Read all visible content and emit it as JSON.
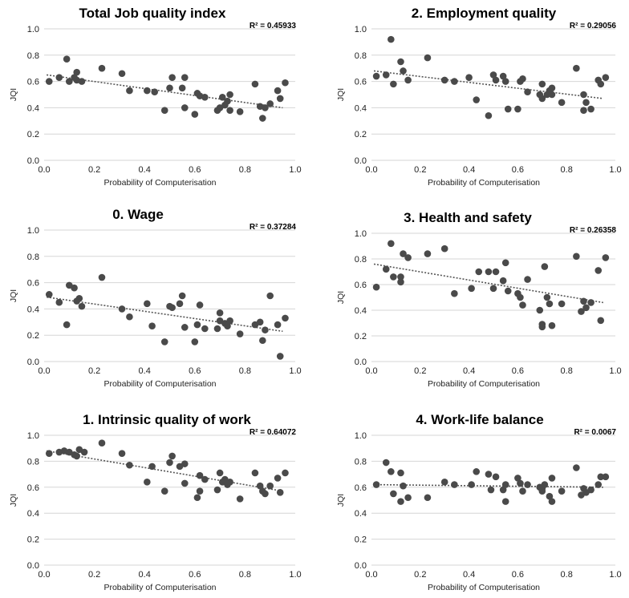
{
  "chart_data": [
    {
      "type": "scatter",
      "title": "Total Job quality index",
      "r2_label": "R² = 0.45933",
      "xlabel": "Probability of Computerisation",
      "ylabel": "JQI",
      "xlim": [
        0,
        1
      ],
      "ylim": [
        0,
        1
      ],
      "xticks": [
        "0.0",
        "0.2",
        "0.4",
        "0.6",
        "0.8",
        "1.0"
      ],
      "yticks": [
        "0.0",
        "0.2",
        "0.4",
        "0.6",
        "0.8",
        "1.0"
      ],
      "grid": true,
      "trendline": {
        "style": "dotted",
        "from": [
          0.01,
          0.65
        ],
        "to": [
          0.95,
          0.4
        ]
      },
      "points": [
        [
          0.02,
          0.6
        ],
        [
          0.06,
          0.63
        ],
        [
          0.09,
          0.77
        ],
        [
          0.1,
          0.6
        ],
        [
          0.12,
          0.63
        ],
        [
          0.13,
          0.61
        ],
        [
          0.13,
          0.67
        ],
        [
          0.15,
          0.6
        ],
        [
          0.23,
          0.7
        ],
        [
          0.31,
          0.66
        ],
        [
          0.34,
          0.53
        ],
        [
          0.41,
          0.53
        ],
        [
          0.44,
          0.52
        ],
        [
          0.48,
          0.38
        ],
        [
          0.5,
          0.55
        ],
        [
          0.51,
          0.63
        ],
        [
          0.55,
          0.55
        ],
        [
          0.56,
          0.63
        ],
        [
          0.56,
          0.4
        ],
        [
          0.6,
          0.35
        ],
        [
          0.61,
          0.51
        ],
        [
          0.62,
          0.49
        ],
        [
          0.64,
          0.48
        ],
        [
          0.69,
          0.38
        ],
        [
          0.7,
          0.4
        ],
        [
          0.71,
          0.48
        ],
        [
          0.72,
          0.42
        ],
        [
          0.73,
          0.45
        ],
        [
          0.74,
          0.5
        ],
        [
          0.74,
          0.38
        ],
        [
          0.78,
          0.37
        ],
        [
          0.84,
          0.58
        ],
        [
          0.86,
          0.41
        ],
        [
          0.87,
          0.32
        ],
        [
          0.88,
          0.4
        ],
        [
          0.9,
          0.43
        ],
        [
          0.93,
          0.53
        ],
        [
          0.94,
          0.47
        ],
        [
          0.96,
          0.59
        ]
      ]
    },
    {
      "type": "scatter",
      "title": "2. Employment quality",
      "r2_label": "R² = 0.29056",
      "xlabel": "Probability of Computerisation",
      "ylabel": "JQI",
      "xlim": [
        0,
        1
      ],
      "ylim": [
        0,
        1
      ],
      "xticks": [
        "0.0",
        "0.2",
        "0.4",
        "0.6",
        "0.8",
        "1.0"
      ],
      "yticks": [
        "0.0",
        "0.2",
        "0.4",
        "0.6",
        "0.8",
        "1.0"
      ],
      "grid": true,
      "trendline": {
        "style": "dotted",
        "from": [
          0.01,
          0.68
        ],
        "to": [
          0.95,
          0.47
        ]
      },
      "points": [
        [
          0.02,
          0.64
        ],
        [
          0.06,
          0.65
        ],
        [
          0.08,
          0.92
        ],
        [
          0.09,
          0.58
        ],
        [
          0.12,
          0.75
        ],
        [
          0.13,
          0.68
        ],
        [
          0.15,
          0.61
        ],
        [
          0.23,
          0.78
        ],
        [
          0.3,
          0.61
        ],
        [
          0.34,
          0.6
        ],
        [
          0.4,
          0.63
        ],
        [
          0.43,
          0.46
        ],
        [
          0.48,
          0.34
        ],
        [
          0.5,
          0.65
        ],
        [
          0.51,
          0.61
        ],
        [
          0.54,
          0.64
        ],
        [
          0.55,
          0.6
        ],
        [
          0.56,
          0.39
        ],
        [
          0.6,
          0.39
        ],
        [
          0.61,
          0.6
        ],
        [
          0.62,
          0.62
        ],
        [
          0.64,
          0.52
        ],
        [
          0.69,
          0.5
        ],
        [
          0.7,
          0.47
        ],
        [
          0.7,
          0.58
        ],
        [
          0.72,
          0.5
        ],
        [
          0.73,
          0.53
        ],
        [
          0.74,
          0.55
        ],
        [
          0.74,
          0.5
        ],
        [
          0.78,
          0.44
        ],
        [
          0.84,
          0.7
        ],
        [
          0.87,
          0.38
        ],
        [
          0.87,
          0.5
        ],
        [
          0.88,
          0.44
        ],
        [
          0.9,
          0.39
        ],
        [
          0.93,
          0.61
        ],
        [
          0.94,
          0.58
        ],
        [
          0.96,
          0.63
        ]
      ]
    },
    {
      "type": "scatter",
      "title": "0. Wage",
      "r2_label": "R² = 0.37284",
      "xlabel": "Probability of Computerisation",
      "ylabel": "JQI",
      "xlim": [
        0,
        1
      ],
      "ylim": [
        0,
        1
      ],
      "xticks": [
        "0.0",
        "0.2",
        "0.4",
        "0.6",
        "0.8",
        "1.0"
      ],
      "yticks": [
        "0.0",
        "0.2",
        "0.4",
        "0.6",
        "0.8",
        "1.0"
      ],
      "grid": true,
      "trendline": {
        "style": "dotted",
        "from": [
          0.01,
          0.49
        ],
        "to": [
          0.95,
          0.23
        ]
      },
      "points": [
        [
          0.02,
          0.51
        ],
        [
          0.06,
          0.45
        ],
        [
          0.09,
          0.28
        ],
        [
          0.1,
          0.58
        ],
        [
          0.12,
          0.56
        ],
        [
          0.13,
          0.46
        ],
        [
          0.14,
          0.48
        ],
        [
          0.15,
          0.42
        ],
        [
          0.23,
          0.64
        ],
        [
          0.31,
          0.4
        ],
        [
          0.34,
          0.34
        ],
        [
          0.41,
          0.44
        ],
        [
          0.43,
          0.27
        ],
        [
          0.48,
          0.15
        ],
        [
          0.5,
          0.42
        ],
        [
          0.51,
          0.41
        ],
        [
          0.54,
          0.44
        ],
        [
          0.55,
          0.5
        ],
        [
          0.56,
          0.26
        ],
        [
          0.6,
          0.15
        ],
        [
          0.61,
          0.28
        ],
        [
          0.62,
          0.43
        ],
        [
          0.64,
          0.25
        ],
        [
          0.69,
          0.25
        ],
        [
          0.7,
          0.31
        ],
        [
          0.7,
          0.37
        ],
        [
          0.72,
          0.29
        ],
        [
          0.73,
          0.27
        ],
        [
          0.74,
          0.31
        ],
        [
          0.78,
          0.21
        ],
        [
          0.84,
          0.28
        ],
        [
          0.86,
          0.3
        ],
        [
          0.87,
          0.16
        ],
        [
          0.88,
          0.24
        ],
        [
          0.9,
          0.5
        ],
        [
          0.93,
          0.28
        ],
        [
          0.94,
          0.04
        ],
        [
          0.96,
          0.33
        ]
      ]
    },
    {
      "type": "scatter",
      "title": "3. Health and safety",
      "r2_label": "R² = 0.26358",
      "xlabel": "Probability of Computerisation",
      "ylabel": "JQI",
      "xlim": [
        0,
        1
      ],
      "ylim": [
        0,
        1
      ],
      "xticks": [
        "0.0",
        "0.2",
        "0.4",
        "0.6",
        "0.8",
        "1.0"
      ],
      "yticks": [
        "0.0",
        "0.2",
        "0.4",
        "0.6",
        "0.8",
        "1.0"
      ],
      "grid": true,
      "trendline": {
        "style": "dotted",
        "from": [
          0.01,
          0.76
        ],
        "to": [
          0.95,
          0.46
        ]
      },
      "points": [
        [
          0.02,
          0.58
        ],
        [
          0.06,
          0.72
        ],
        [
          0.08,
          0.92
        ],
        [
          0.09,
          0.66
        ],
        [
          0.12,
          0.62
        ],
        [
          0.12,
          0.66
        ],
        [
          0.13,
          0.84
        ],
        [
          0.15,
          0.81
        ],
        [
          0.23,
          0.84
        ],
        [
          0.3,
          0.88
        ],
        [
          0.34,
          0.53
        ],
        [
          0.41,
          0.57
        ],
        [
          0.44,
          0.7
        ],
        [
          0.48,
          0.7
        ],
        [
          0.5,
          0.57
        ],
        [
          0.51,
          0.7
        ],
        [
          0.54,
          0.63
        ],
        [
          0.55,
          0.77
        ],
        [
          0.56,
          0.55
        ],
        [
          0.6,
          0.53
        ],
        [
          0.61,
          0.5
        ],
        [
          0.62,
          0.44
        ],
        [
          0.64,
          0.64
        ],
        [
          0.69,
          0.4
        ],
        [
          0.7,
          0.27
        ],
        [
          0.7,
          0.29
        ],
        [
          0.71,
          0.74
        ],
        [
          0.72,
          0.5
        ],
        [
          0.73,
          0.45
        ],
        [
          0.74,
          0.28
        ],
        [
          0.78,
          0.45
        ],
        [
          0.84,
          0.82
        ],
        [
          0.86,
          0.39
        ],
        [
          0.87,
          0.47
        ],
        [
          0.88,
          0.42
        ],
        [
          0.9,
          0.46
        ],
        [
          0.93,
          0.71
        ],
        [
          0.94,
          0.32
        ],
        [
          0.96,
          0.81
        ]
      ]
    },
    {
      "type": "scatter",
      "title": "1. Intrinsic quality of work",
      "r2_label": "R² = 0.64072",
      "xlabel": "Probability of Computerisation",
      "ylabel": "JQI",
      "xlim": [
        0,
        1
      ],
      "ylim": [
        0,
        1
      ],
      "xticks": [
        "0.0",
        "0.2",
        "0.4",
        "0.6",
        "0.8",
        "1.0"
      ],
      "yticks": [
        "0.0",
        "0.2",
        "0.4",
        "0.6",
        "0.8",
        "1.0"
      ],
      "grid": true,
      "trendline": {
        "style": "dotted",
        "from": [
          0.01,
          0.88
        ],
        "to": [
          0.95,
          0.57
        ]
      },
      "points": [
        [
          0.02,
          0.86
        ],
        [
          0.06,
          0.87
        ],
        [
          0.08,
          0.88
        ],
        [
          0.1,
          0.87
        ],
        [
          0.12,
          0.85
        ],
        [
          0.13,
          0.84
        ],
        [
          0.14,
          0.89
        ],
        [
          0.16,
          0.87
        ],
        [
          0.23,
          0.94
        ],
        [
          0.31,
          0.86
        ],
        [
          0.34,
          0.77
        ],
        [
          0.41,
          0.64
        ],
        [
          0.43,
          0.76
        ],
        [
          0.48,
          0.57
        ],
        [
          0.5,
          0.79
        ],
        [
          0.51,
          0.84
        ],
        [
          0.54,
          0.76
        ],
        [
          0.56,
          0.78
        ],
        [
          0.56,
          0.63
        ],
        [
          0.61,
          0.52
        ],
        [
          0.62,
          0.69
        ],
        [
          0.62,
          0.57
        ],
        [
          0.64,
          0.66
        ],
        [
          0.69,
          0.58
        ],
        [
          0.7,
          0.71
        ],
        [
          0.71,
          0.64
        ],
        [
          0.72,
          0.66
        ],
        [
          0.73,
          0.62
        ],
        [
          0.74,
          0.64
        ],
        [
          0.78,
          0.51
        ],
        [
          0.84,
          0.71
        ],
        [
          0.86,
          0.61
        ],
        [
          0.87,
          0.57
        ],
        [
          0.88,
          0.55
        ],
        [
          0.9,
          0.61
        ],
        [
          0.93,
          0.67
        ],
        [
          0.94,
          0.56
        ],
        [
          0.96,
          0.71
        ]
      ]
    },
    {
      "type": "scatter",
      "title": "4. Work-life balance",
      "r2_label": "R² = 0.0067",
      "xlabel": "Probability of Computerisation",
      "ylabel": "JQI",
      "xlim": [
        0,
        1
      ],
      "ylim": [
        0,
        1
      ],
      "xticks": [
        "0.0",
        "0.2",
        "0.4",
        "0.6",
        "0.8",
        "1.0"
      ],
      "yticks": [
        "0.0",
        "0.2",
        "0.4",
        "0.6",
        "0.8",
        "1.0"
      ],
      "grid": true,
      "trendline": {
        "style": "dotted",
        "from": [
          0.01,
          0.62
        ],
        "to": [
          0.95,
          0.6
        ]
      },
      "points": [
        [
          0.02,
          0.62
        ],
        [
          0.06,
          0.79
        ],
        [
          0.08,
          0.72
        ],
        [
          0.09,
          0.55
        ],
        [
          0.12,
          0.71
        ],
        [
          0.12,
          0.49
        ],
        [
          0.13,
          0.61
        ],
        [
          0.15,
          0.52
        ],
        [
          0.23,
          0.52
        ],
        [
          0.3,
          0.64
        ],
        [
          0.34,
          0.62
        ],
        [
          0.41,
          0.62
        ],
        [
          0.43,
          0.72
        ],
        [
          0.48,
          0.7
        ],
        [
          0.49,
          0.58
        ],
        [
          0.51,
          0.68
        ],
        [
          0.54,
          0.58
        ],
        [
          0.55,
          0.62
        ],
        [
          0.55,
          0.49
        ],
        [
          0.6,
          0.67
        ],
        [
          0.61,
          0.63
        ],
        [
          0.62,
          0.57
        ],
        [
          0.64,
          0.62
        ],
        [
          0.69,
          0.6
        ],
        [
          0.7,
          0.59
        ],
        [
          0.7,
          0.57
        ],
        [
          0.71,
          0.62
        ],
        [
          0.73,
          0.53
        ],
        [
          0.74,
          0.67
        ],
        [
          0.74,
          0.49
        ],
        [
          0.78,
          0.57
        ],
        [
          0.84,
          0.75
        ],
        [
          0.86,
          0.54
        ],
        [
          0.87,
          0.59
        ],
        [
          0.88,
          0.56
        ],
        [
          0.9,
          0.58
        ],
        [
          0.93,
          0.62
        ],
        [
          0.94,
          0.68
        ],
        [
          0.96,
          0.68
        ]
      ]
    }
  ]
}
